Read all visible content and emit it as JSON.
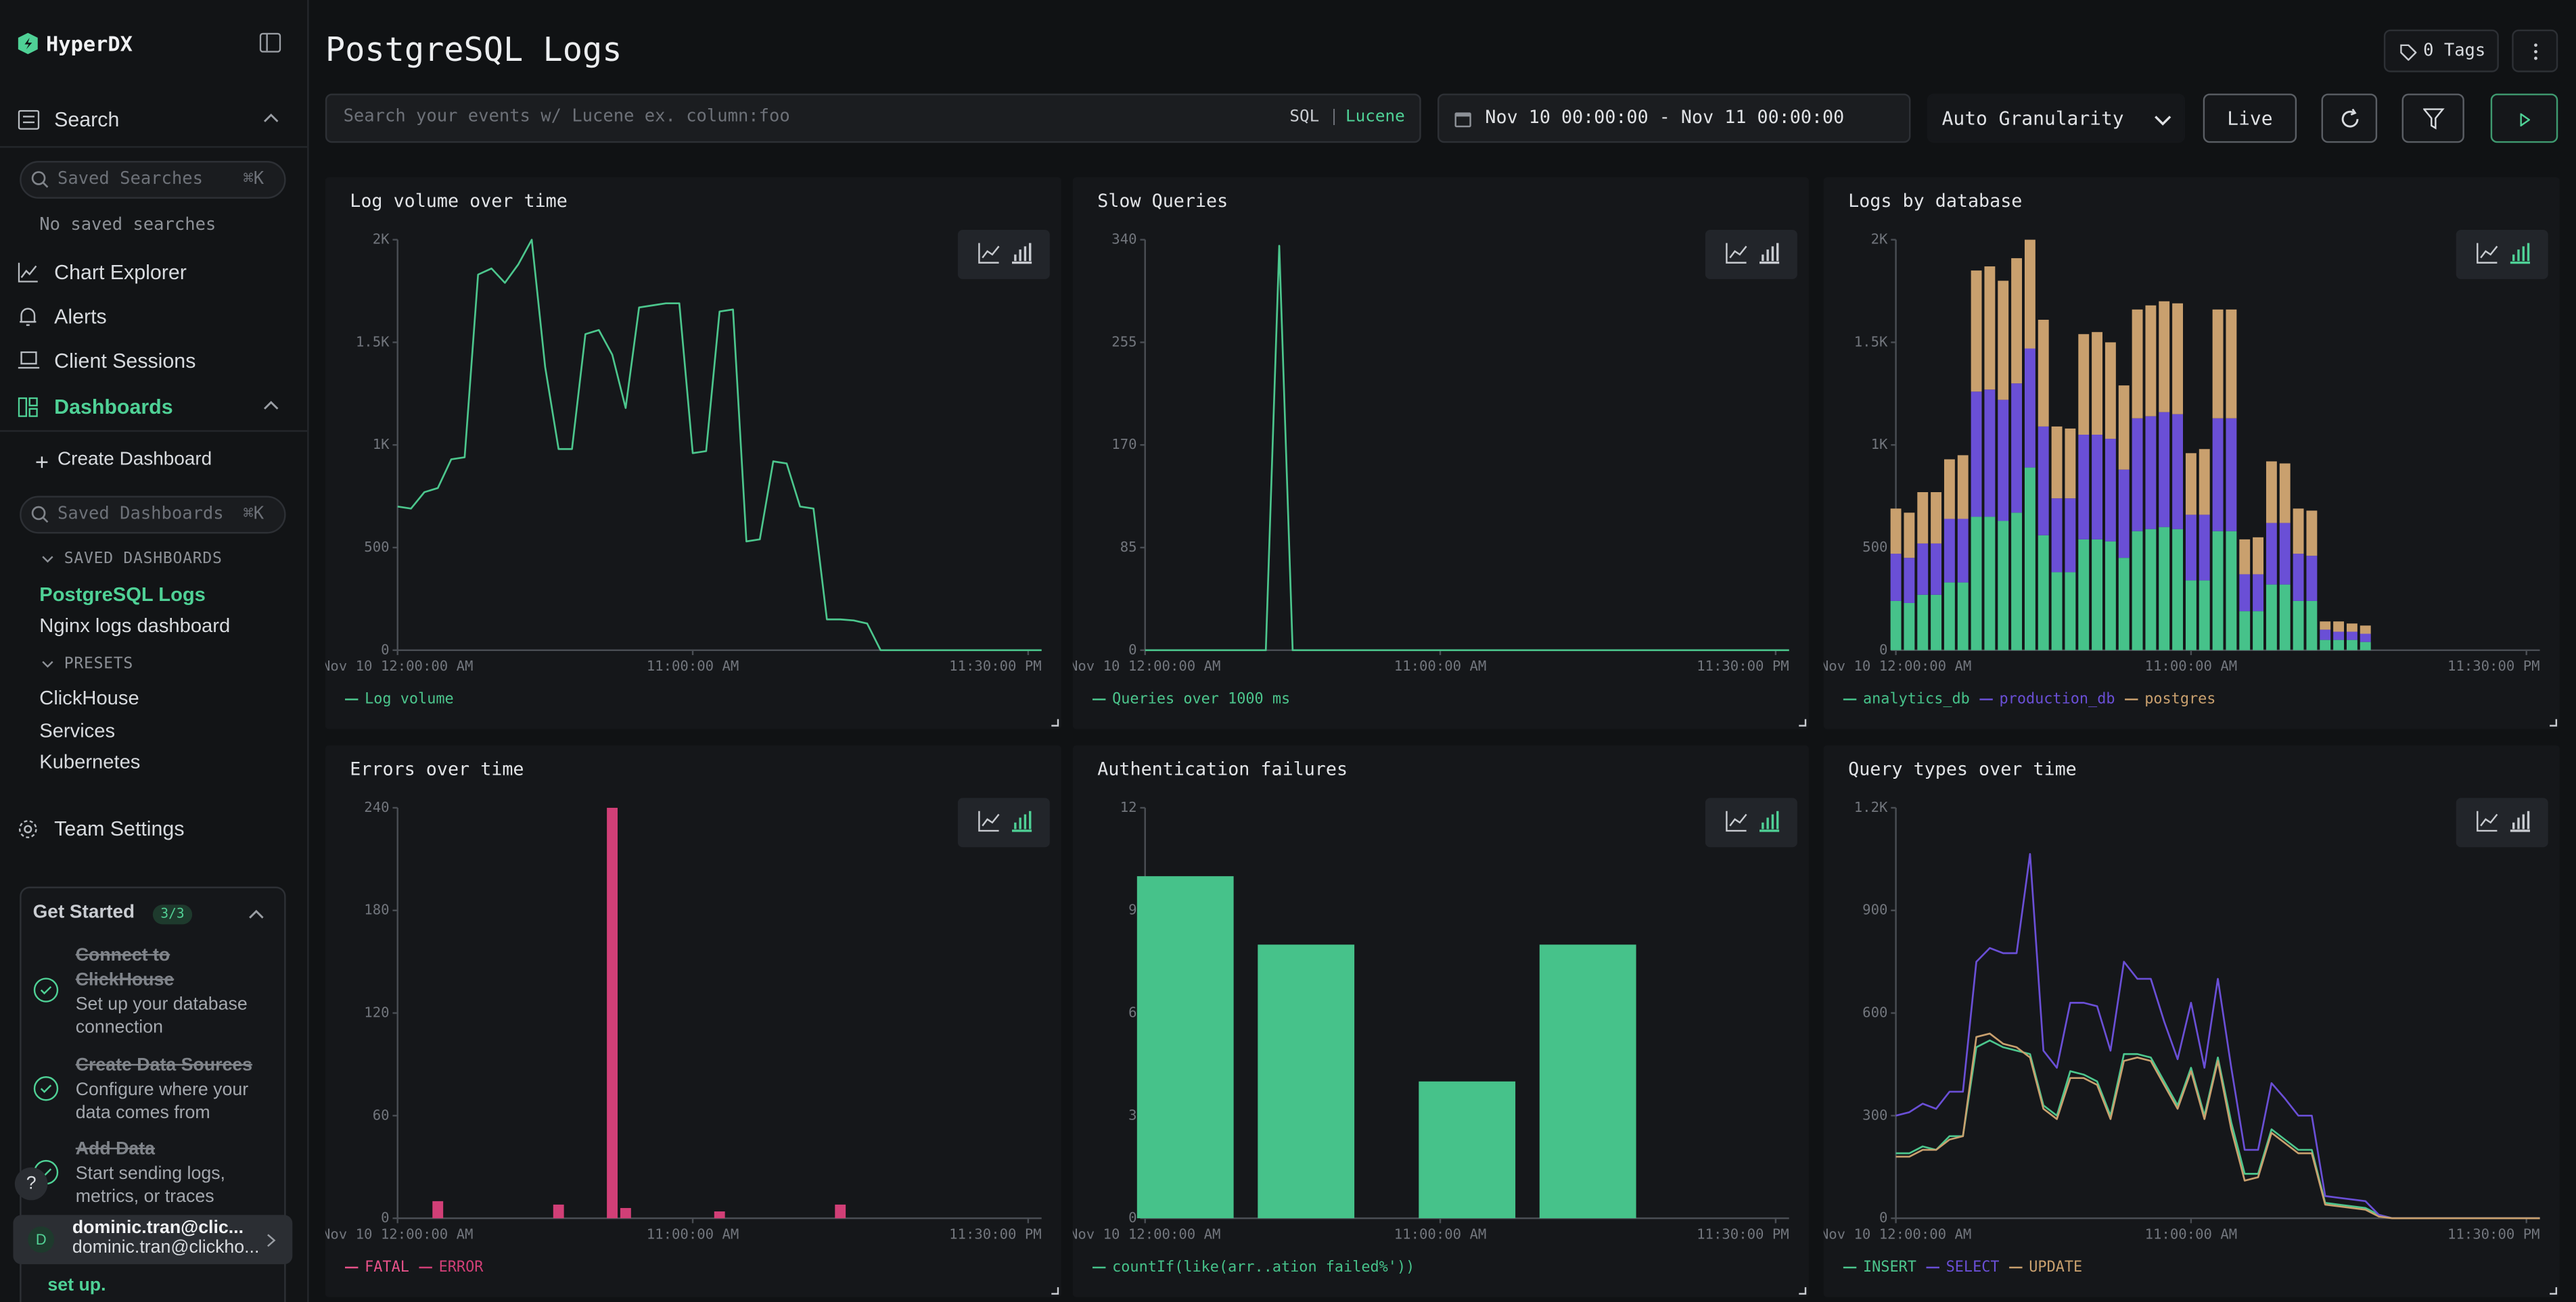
{
  "sidebar": {
    "brand": "HyperDX",
    "search": "Search",
    "saved_searches_placeholder": "Saved Searches",
    "shortcut": "⌘K",
    "no_saved_searches": "No saved searches",
    "nav": [
      "Chart Explorer",
      "Alerts",
      "Client Sessions"
    ],
    "dashboards": "Dashboards",
    "create_dashboard": "Create Dashboard",
    "saved_dashboards_placeholder": "Saved Dashboards",
    "saved_dashboards_heading": "SAVED DASHBOARDS",
    "saved_dashboards": [
      "PostgreSQL Logs",
      "Nginx logs dashboard"
    ],
    "presets_heading": "PRESETS",
    "presets": [
      "ClickHouse",
      "Services",
      "Kubernetes"
    ],
    "team_settings": "Team Settings",
    "get_started": {
      "title": "Get Started",
      "progress": "3/3",
      "steps": [
        {
          "title": "Connect to ClickHouse",
          "description": "Set up your database connection"
        },
        {
          "title": "Create Data Sources",
          "description": "Configure where your data comes from"
        },
        {
          "title": "Add Data",
          "description": "Start sending logs, metrics, or traces"
        }
      ],
      "footer": "set up."
    },
    "help": "?",
    "user": {
      "avatar": "D",
      "name": "dominic.tran@clic...",
      "email": "dominic.tran@clickho..."
    }
  },
  "header": {
    "title": "PostgreSQL Logs",
    "tags": "0 Tags",
    "search_placeholder": "Search your events w/ Lucene ex. column:foo",
    "sql": "SQL",
    "separator": "|",
    "lucene": "Lucene",
    "date_range": "Nov 10 00:00:00 - Nov 11 00:00:00",
    "granularity": "Auto Granularity",
    "live": "Live"
  },
  "chart_data": [
    {
      "type": "line",
      "title": "Log volume over time",
      "x": [
        0,
        0.5,
        1,
        1.5,
        2,
        2.5,
        3,
        3.5,
        4,
        4.5,
        5,
        5.5,
        6,
        6.5,
        7,
        7.5,
        8,
        8.5,
        9,
        9.5,
        10,
        10.5,
        11,
        11.5,
        12,
        12.5,
        13,
        13.5,
        14,
        14.5,
        15,
        15.5,
        16,
        16.5,
        17,
        17.5,
        18,
        18.5,
        19,
        19.5,
        20,
        20.5,
        21,
        21.5,
        22,
        22.5,
        23,
        23.5,
        24
      ],
      "series": [
        {
          "name": "Log volume",
          "color": "#4cc68d",
          "values": [
            700,
            690,
            770,
            790,
            930,
            940,
            1830,
            1860,
            1790,
            1880,
            2000,
            1380,
            980,
            980,
            1540,
            1560,
            1440,
            1180,
            1670,
            1680,
            1690,
            1690,
            960,
            970,
            1650,
            1660,
            530,
            540,
            920,
            910,
            700,
            690,
            150,
            150,
            145,
            130,
            0,
            0,
            0,
            0,
            0,
            0,
            0,
            0,
            0,
            0,
            0,
            0,
            0
          ]
        }
      ],
      "xlim": [
        0,
        24
      ],
      "xticks": [
        {
          "value": 0,
          "label": "Nov 10 12:00:00 AM"
        },
        {
          "value": 11,
          "label": "11:00:00 AM"
        },
        {
          "value": 23.5,
          "label": "11:30:00 PM"
        }
      ],
      "ylim": [
        0,
        2000
      ],
      "yticks": [
        0,
        500,
        {
          "value": 1000,
          "label": "1K"
        },
        {
          "value": 1500,
          "label": "1.5K"
        },
        {
          "value": 2000,
          "label": "2K"
        }
      ]
    },
    {
      "type": "line",
      "title": "Slow Queries",
      "x": [
        0,
        0.5,
        1,
        1.5,
        2,
        2.5,
        3,
        3.5,
        4,
        4.5,
        5,
        5.5,
        6,
        6.5,
        7,
        7.5,
        8,
        8.5,
        9,
        9.5,
        10,
        10.5,
        11,
        11.5,
        12,
        12.5,
        13,
        13.5,
        14,
        14.5,
        15,
        15.5,
        16,
        16.5,
        17,
        17.5,
        18,
        18.5,
        19,
        19.5,
        20,
        20.5,
        21,
        21.5,
        22,
        22.5,
        23,
        23.5,
        24
      ],
      "series": [
        {
          "name": "Queries over 1000 ms",
          "color": "#4cc68d",
          "values": [
            0,
            0,
            0,
            0,
            0,
            0,
            0,
            0,
            0,
            0,
            335,
            0,
            0,
            0,
            0,
            0,
            0,
            0,
            0,
            0,
            0,
            0,
            0,
            0,
            0,
            0,
            0,
            0,
            0,
            0,
            0,
            0,
            0,
            0,
            0,
            0,
            0,
            0,
            0,
            0,
            0,
            0,
            0,
            0,
            0,
            0,
            0,
            0,
            0
          ]
        }
      ],
      "xlim": [
        0,
        24
      ],
      "xticks": [
        {
          "value": 0,
          "label": "Nov 10 12:00:00 AM"
        },
        {
          "value": 11,
          "label": "11:00:00 AM"
        },
        {
          "value": 23.5,
          "label": "11:30:00 PM"
        }
      ],
      "ylim": [
        0,
        340
      ],
      "yticks": [
        0,
        85,
        170,
        255,
        340
      ]
    },
    {
      "type": "bar",
      "title": "Logs by database",
      "stacked": true,
      "x": [
        0,
        0.5,
        1,
        1.5,
        2,
        2.5,
        3,
        3.5,
        4,
        4.5,
        5,
        5.5,
        6,
        6.5,
        7,
        7.5,
        8,
        8.5,
        9,
        9.5,
        10,
        10.5,
        11,
        11.5,
        12,
        12.5,
        13,
        13.5,
        14,
        14.5,
        15,
        15.5,
        16,
        16.5,
        17,
        17.5
      ],
      "series": [
        {
          "name": "analytics_db",
          "color": "#46c28a",
          "values": [
            240,
            230,
            270,
            270,
            330,
            330,
            650,
            650,
            630,
            670,
            890,
            560,
            380,
            380,
            540,
            540,
            530,
            450,
            580,
            590,
            600,
            590,
            340,
            340,
            580,
            580,
            190,
            190,
            320,
            320,
            240,
            240,
            50,
            50,
            50,
            40
          ]
        },
        {
          "name": "production_db",
          "color": "#6a4fd6",
          "values": [
            230,
            220,
            250,
            250,
            310,
            310,
            610,
            620,
            590,
            630,
            580,
            530,
            360,
            360,
            510,
            510,
            500,
            430,
            550,
            550,
            560,
            560,
            320,
            320,
            550,
            550,
            180,
            180,
            300,
            300,
            230,
            220,
            50,
            40,
            40,
            40
          ]
        },
        {
          "name": "postgres",
          "color": "#c9a06e",
          "values": [
            220,
            220,
            250,
            250,
            290,
            310,
            590,
            600,
            580,
            610,
            530,
            520,
            350,
            340,
            490,
            500,
            470,
            410,
            530,
            540,
            540,
            540,
            300,
            320,
            530,
            530,
            170,
            180,
            300,
            290,
            220,
            220,
            40,
            50,
            40,
            40
          ]
        }
      ],
      "xlim": [
        0,
        24
      ],
      "xticks": [
        {
          "value": 0,
          "label": "Nov 10 12:00:00 AM"
        },
        {
          "value": 11,
          "label": "11:00:00 AM"
        },
        {
          "value": 23.5,
          "label": "11:30:00 PM"
        }
      ],
      "ylim": [
        0,
        2000
      ],
      "yticks": [
        0,
        500,
        {
          "value": 1000,
          "label": "1K"
        },
        {
          "value": 1500,
          "label": "1.5K"
        },
        {
          "value": 2000,
          "label": "2K"
        }
      ]
    },
    {
      "type": "bar",
      "title": "Errors over time",
      "stacked": true,
      "x": [
        1.5,
        6,
        8,
        8.5,
        12,
        16.5
      ],
      "series": [
        {
          "name": "FATAL",
          "color": "#e8528a",
          "values": [
            0,
            0,
            0,
            0,
            0,
            0
          ]
        },
        {
          "name": "ERROR",
          "color": "#d13f77",
          "values": [
            10,
            8,
            240,
            6,
            4,
            8
          ]
        }
      ],
      "xlim": [
        0,
        24
      ],
      "xticks": [
        {
          "value": 0,
          "label": "Nov 10 12:00:00 AM"
        },
        {
          "value": 11,
          "label": "11:00:00 AM"
        },
        {
          "value": 23.5,
          "label": "11:30:00 PM"
        }
      ],
      "ylim": [
        0,
        240
      ],
      "yticks": [
        0,
        60,
        120,
        180,
        240
      ]
    },
    {
      "type": "bar",
      "title": "Authentication failures",
      "stacked": true,
      "x": [
        1.5,
        6,
        12,
        16.5
      ],
      "series": [
        {
          "name": "countIf(like(arr..ation failed%'))",
          "color": "#46c28a",
          "values": [
            10,
            8,
            4,
            8
          ]
        }
      ],
      "xlim": [
        0,
        24
      ],
      "xticks": [
        {
          "value": 0,
          "label": "Nov 10 12:00:00 AM"
        },
        {
          "value": 11,
          "label": "11:00:00 AM"
        },
        {
          "value": 23.5,
          "label": "11:30:00 PM"
        }
      ],
      "ylim": [
        0,
        12
      ],
      "yticks": [
        0,
        3,
        6,
        9,
        12
      ]
    },
    {
      "type": "line",
      "title": "Query types over time",
      "x": [
        0,
        0.5,
        1,
        1.5,
        2,
        2.5,
        3,
        3.5,
        4,
        4.5,
        5,
        5.5,
        6,
        6.5,
        7,
        7.5,
        8,
        8.5,
        9,
        9.5,
        10,
        10.5,
        11,
        11.5,
        12,
        12.5,
        13,
        13.5,
        14,
        14.5,
        15,
        15.5,
        16,
        16.5,
        17,
        17.5,
        18,
        18.5,
        19,
        19.5,
        20,
        20.5,
        21,
        21.5,
        22,
        22.5,
        23,
        23.5,
        24
      ],
      "series": [
        {
          "name": "INSERT",
          "color": "#4cc68d",
          "values": [
            190,
            190,
            210,
            200,
            240,
            240,
            500,
            520,
            500,
            490,
            480,
            330,
            300,
            430,
            420,
            400,
            300,
            480,
            480,
            470,
            400,
            330,
            440,
            300,
            470,
            280,
            130,
            130,
            260,
            230,
            200,
            200,
            45,
            40,
            35,
            30,
            10,
            0,
            0,
            0,
            0,
            0,
            0,
            0,
            0,
            0,
            0,
            0,
            0
          ]
        },
        {
          "name": "SELECT",
          "color": "#6a4fd6",
          "values": [
            300,
            310,
            335,
            320,
            370,
            370,
            750,
            790,
            775,
            775,
            1065,
            490,
            440,
            630,
            630,
            620,
            490,
            750,
            700,
            700,
            575,
            465,
            630,
            440,
            700,
            440,
            200,
            200,
            395,
            350,
            300,
            300,
            65,
            60,
            55,
            50,
            10,
            0,
            0,
            0,
            0,
            0,
            0,
            0,
            0,
            0,
            0,
            0,
            0
          ]
        },
        {
          "name": "UPDATE",
          "color": "#c9a06e",
          "values": [
            180,
            180,
            200,
            200,
            230,
            240,
            530,
            540,
            510,
            500,
            470,
            320,
            290,
            410,
            410,
            390,
            290,
            460,
            470,
            460,
            390,
            320,
            430,
            290,
            460,
            260,
            110,
            120,
            250,
            220,
            190,
            190,
            40,
            35,
            30,
            25,
            5,
            0,
            0,
            0,
            0,
            0,
            0,
            0,
            0,
            0,
            0,
            0,
            0
          ]
        }
      ],
      "xlim": [
        0,
        24
      ],
      "xticks": [
        {
          "value": 0,
          "label": "Nov 10 12:00:00 AM"
        },
        {
          "value": 11,
          "label": "11:00:00 AM"
        },
        {
          "value": 23.5,
          "label": "11:30:00 PM"
        }
      ],
      "ylim": [
        0,
        1200
      ],
      "yticks": [
        0,
        300,
        600,
        900,
        {
          "value": 1200,
          "label": "1.2K"
        }
      ]
    }
  ]
}
